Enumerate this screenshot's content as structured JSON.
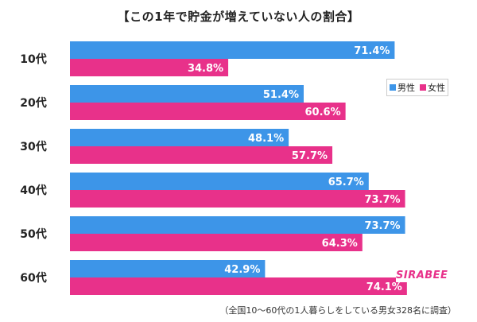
{
  "title": "【この1年で貯金が増えていない人の割合】",
  "footnote": "（全国10～60代の1人暮らしをしている男女328名に調査）",
  "legend": {
    "male": "男性",
    "female": "女性"
  },
  "logo_text": "SIRABEE",
  "colors": {
    "male": "#3d95e8",
    "female": "#e8318a"
  },
  "chart_data": {
    "type": "bar",
    "orientation": "horizontal",
    "categories": [
      "10代",
      "20代",
      "30代",
      "40代",
      "50代",
      "60代"
    ],
    "series": [
      {
        "name": "男性",
        "values": [
          71.4,
          51.4,
          48.1,
          65.7,
          73.7,
          42.9
        ]
      },
      {
        "name": "女性",
        "values": [
          34.8,
          60.6,
          57.7,
          73.7,
          64.3,
          74.1
        ]
      }
    ],
    "value_suffix": "%",
    "xlim": [
      0,
      100
    ],
    "grid": false,
    "legend_position": "top-right"
  }
}
